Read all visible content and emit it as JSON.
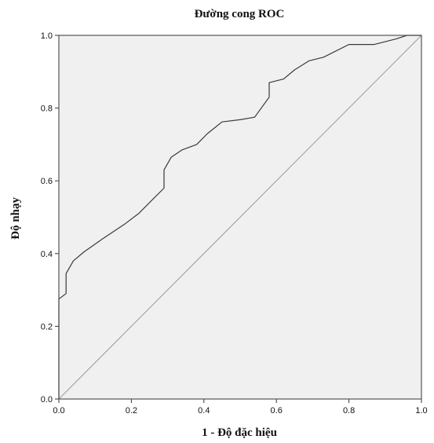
{
  "chart_data": {
    "type": "line",
    "title": "Đường cong ROC",
    "xlabel": "1 -  Độ đặc hiệu",
    "ylabel": "Độ nhạy",
    "xlim": [
      0.0,
      1.0
    ],
    "ylim": [
      0.0,
      1.0
    ],
    "xticks": [
      "0.0",
      "0.2",
      "0.4",
      "0.6",
      "0.8",
      "1.0"
    ],
    "yticks": [
      "0.0",
      "0.2",
      "0.4",
      "0.6",
      "0.8",
      "1.0"
    ],
    "grid": false,
    "legend": "none",
    "series": [
      {
        "x": [
          0.0,
          0.0,
          0.02,
          0.02,
          0.04,
          0.07,
          0.12,
          0.18,
          0.22,
          0.26,
          0.29,
          0.29,
          0.31,
          0.34,
          0.38,
          0.41,
          0.45,
          0.5,
          0.54,
          0.58,
          0.58,
          0.62,
          0.65,
          0.69,
          0.73,
          0.8,
          0.87,
          0.93,
          0.96,
          1.0
        ],
        "y": [
          0.0,
          0.275,
          0.29,
          0.345,
          0.38,
          0.405,
          0.44,
          0.48,
          0.51,
          0.55,
          0.58,
          0.63,
          0.665,
          0.685,
          0.7,
          0.73,
          0.762,
          0.768,
          0.775,
          0.83,
          0.87,
          0.88,
          0.905,
          0.93,
          0.94,
          0.975,
          0.975,
          0.99,
          1.0,
          1.0
        ]
      },
      {
        "x": [
          0.0,
          1.0
        ],
        "y": [
          0.0,
          1.0
        ]
      }
    ],
    "colors": {
      "plot_background": "#f0f0f0",
      "curve": "#3a3a3a",
      "reference_line": "#9a9a9a",
      "frame": "#555555"
    }
  }
}
